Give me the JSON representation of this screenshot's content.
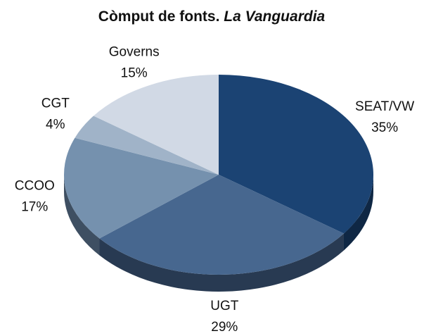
{
  "chart_data": {
    "type": "pie",
    "title": "Còmput de fonts.",
    "title_source": "La Vanguardia",
    "categories": [
      "SEAT/VW",
      "UGT",
      "CCOO",
      "CGT",
      "Governs"
    ],
    "values": [
      35,
      29,
      17,
      4,
      15
    ],
    "value_labels": [
      "35%",
      "29%",
      "17%",
      "4%",
      "15%"
    ],
    "colors": [
      "#1b4373",
      "#47678f",
      "#7591ae",
      "#a0b3c8",
      "#d1d9e5"
    ],
    "side_colors": [
      "#0f2744",
      "#283a52",
      "#3e4f62",
      "#5a6675",
      "#7d838c"
    ]
  }
}
